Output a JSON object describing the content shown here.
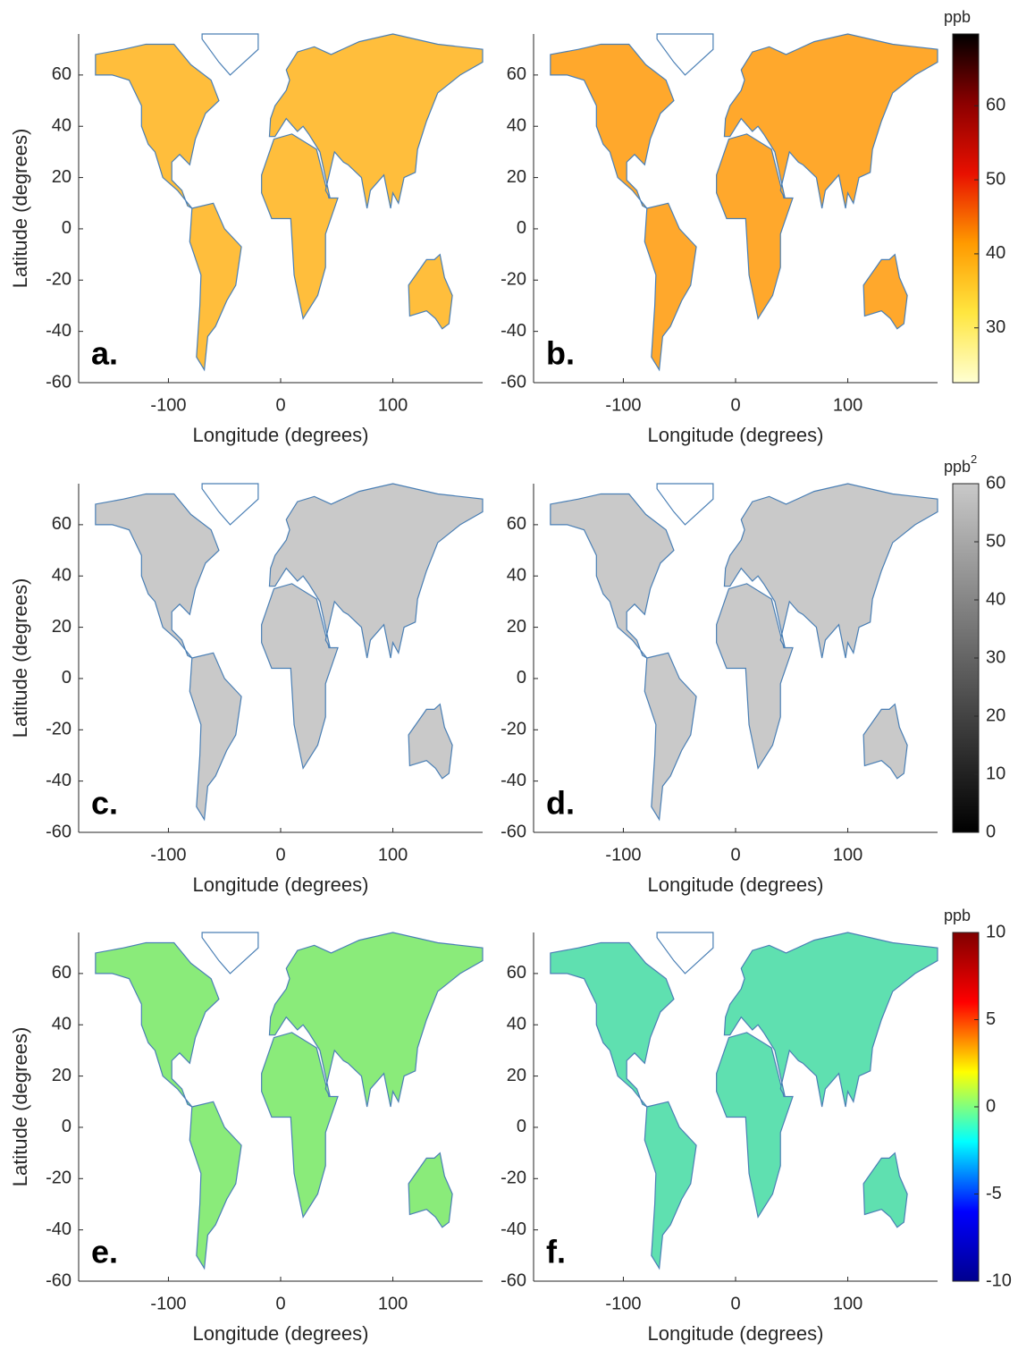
{
  "panels": [
    {
      "label": "a.",
      "xlabel": "Longitude (degrees)",
      "ylabel": "Latitude (degrees)",
      "xlim": [
        -180,
        180
      ],
      "ylim": [
        -60,
        76
      ],
      "xticks": [
        -100,
        0,
        100
      ],
      "yticks": [
        -60,
        -40,
        -20,
        0,
        20,
        40,
        60
      ],
      "land_color": "#ffbe3c"
    },
    {
      "label": "b.",
      "xlabel": "Longitude (degrees)",
      "xlim": [
        -180,
        180
      ],
      "ylim": [
        -60,
        76
      ],
      "xticks": [
        -100,
        0,
        100
      ],
      "yticks": [
        -60,
        -40,
        -20,
        0,
        20,
        40,
        60
      ],
      "land_color": "#ffa82c"
    },
    {
      "label": "c.",
      "xlabel": "Longitude (degrees)",
      "ylabel": "Latitude (degrees)",
      "xlim": [
        -180,
        180
      ],
      "ylim": [
        -60,
        76
      ],
      "xticks": [
        -100,
        0,
        100
      ],
      "yticks": [
        -60,
        -40,
        -20,
        0,
        20,
        40,
        60
      ],
      "land_color": "#c9c9c9"
    },
    {
      "label": "d.",
      "xlabel": "Longitude (degrees)",
      "xlim": [
        -180,
        180
      ],
      "ylim": [
        -60,
        76
      ],
      "xticks": [
        -100,
        0,
        100
      ],
      "yticks": [
        -60,
        -40,
        -20,
        0,
        20,
        40,
        60
      ],
      "land_color": "#c9c9c9"
    },
    {
      "label": "e.",
      "xlabel": "Longitude (degrees)",
      "ylabel": "Latitude (degrees)",
      "xlim": [
        -180,
        180
      ],
      "ylim": [
        -60,
        76
      ],
      "xticks": [
        -100,
        0,
        100
      ],
      "yticks": [
        -60,
        -40,
        -20,
        0,
        20,
        40,
        60
      ],
      "land_color": "#8aeb7a"
    },
    {
      "label": "f.",
      "xlabel": "Longitude (degrees)",
      "xlim": [
        -180,
        180
      ],
      "ylim": [
        -60,
        76
      ],
      "xticks": [
        -100,
        0,
        100
      ],
      "yticks": [
        -60,
        -40,
        -20,
        0,
        20,
        40,
        60
      ],
      "land_color": "#5fe0b0"
    }
  ],
  "colorbars": [
    {
      "unit": "ppb",
      "lim": [
        22.6,
        69.7
      ],
      "ticks": [
        30,
        40,
        50,
        60
      ],
      "colors": [
        "#ffffd2",
        "#ffe640",
        "#ff9a00",
        "#e81000",
        "#8c0000",
        "#000000"
      ]
    },
    {
      "unit": "ppb",
      "unit_superscript": "2",
      "lim": [
        0,
        60
      ],
      "ticks": [
        0,
        10,
        20,
        30,
        40,
        50,
        60
      ],
      "colors": [
        "#000000",
        "#c9c9c9"
      ]
    },
    {
      "unit": "ppb",
      "lim": [
        -10,
        10
      ],
      "ticks": [
        -10,
        -5,
        0,
        5,
        10
      ],
      "colors": [
        "#00008f",
        "#0000ff",
        "#00ffff",
        "#ffff00",
        "#ff0000",
        "#800000"
      ]
    }
  ]
}
